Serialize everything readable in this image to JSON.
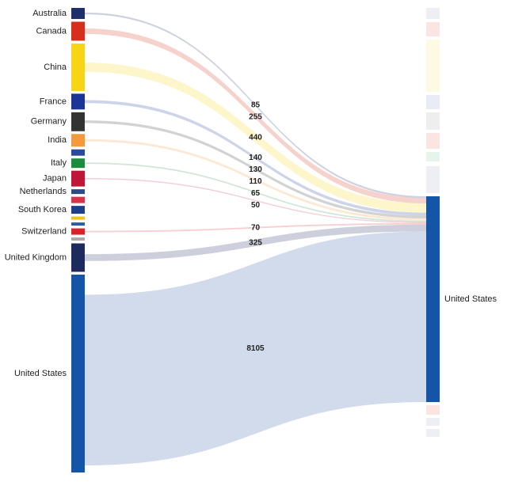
{
  "chart_data": {
    "type": "sankey",
    "sources": [
      {
        "name": "Australia",
        "color": "#1f2f6b",
        "value": 525
      },
      {
        "name": "Canada",
        "color": "#d6301c",
        "value": 900
      },
      {
        "name": "China",
        "color": "#f7d414",
        "value": 2255
      },
      {
        "name": "France",
        "color": "#1a3596",
        "value": 750
      },
      {
        "name": "Germany",
        "color": "#333333",
        "value": 900
      },
      {
        "name": "India",
        "color": "#f39a3c",
        "value": 600
      },
      {
        "name": null,
        "color": "#2a4a9a",
        "value": 300
      },
      {
        "name": "Italy",
        "color": "#1e8c3e",
        "value": 450
      },
      {
        "name": "Japan",
        "color": "#bf1637",
        "value": 750
      },
      {
        "name": "Netherlands",
        "color": "#2b4a88",
        "value": 225
      },
      {
        "name": null,
        "color": "#d8334a",
        "value": 300
      },
      {
        "name": "South Korea",
        "color": "#1d3f8c",
        "value": 375
      },
      {
        "name": null,
        "color": "#f2c21b",
        "value": 150
      },
      {
        "name": null,
        "color": "#2f5aa8",
        "value": 150
      },
      {
        "name": "Switzerland",
        "color": "#d8232a",
        "value": 300
      },
      {
        "name": null,
        "color": "#aaaaaa",
        "value": 150
      },
      {
        "name": "United Kingdom",
        "color": "#1c2a5e",
        "value": 1350
      },
      {
        "name": "United States",
        "color": "#1555a8",
        "value": 9400
      }
    ],
    "target": {
      "name": "United States",
      "color": "#1555a8"
    },
    "links": [
      {
        "source": 0,
        "value": 85
      },
      {
        "source": 1,
        "value": 255
      },
      {
        "source": 2,
        "value": 440
      },
      {
        "source": 3,
        "value": 140
      },
      {
        "source": 4,
        "value": 130
      },
      {
        "source": 5,
        "value": 110
      },
      {
        "source": 7,
        "value": 65
      },
      {
        "source": 8,
        "value": 50
      },
      {
        "source": 14,
        "value": 70
      },
      {
        "source": 16,
        "value": 325
      },
      {
        "source": 17,
        "value": 8105
      }
    ]
  }
}
